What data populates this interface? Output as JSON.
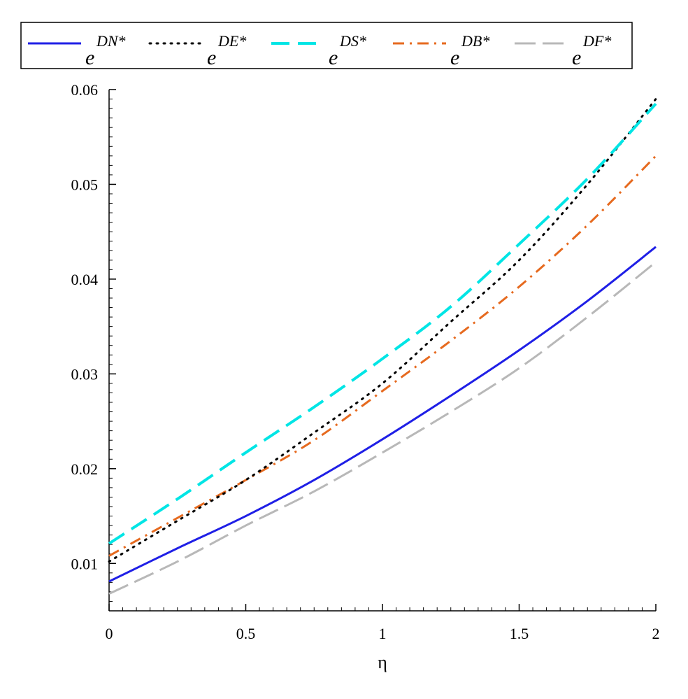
{
  "chart_data": {
    "type": "line",
    "title": "",
    "xlabel": "η",
    "ylabel": "",
    "xlim": [
      0,
      2
    ],
    "ylim": [
      0.005,
      0.06
    ],
    "x_ticks": [
      0,
      0.5,
      1,
      1.5,
      2
    ],
    "x_tick_labels": [
      "0",
      "0.5",
      "1",
      "1.5",
      "2"
    ],
    "y_ticks": [
      0.01,
      0.02,
      0.03,
      0.04,
      0.05,
      0.06
    ],
    "y_tick_labels": [
      "0.01",
      "0.02",
      "0.03",
      "0.04",
      "0.05",
      "0.06"
    ],
    "grid": false,
    "legend_position": "top",
    "x": [
      0,
      0.25,
      0.5,
      0.75,
      1.0,
      1.25,
      1.5,
      1.75,
      2.0
    ],
    "series": [
      {
        "name": "DN*",
        "legend_base": "e",
        "legend_sup": "DN*",
        "color": "#1f1fe6",
        "dash": "solid",
        "values": [
          0.0081,
          0.0116,
          0.015,
          0.0188,
          0.0231,
          0.0277,
          0.0325,
          0.0377,
          0.0434
        ]
      },
      {
        "name": "DE*",
        "legend_base": "e",
        "legend_sup": "DE*",
        "color": "#000000",
        "dash": "dot",
        "values": [
          0.0102,
          0.0145,
          0.0188,
          0.0238,
          0.029,
          0.0355,
          0.042,
          0.05,
          0.059
        ]
      },
      {
        "name": "DS*",
        "legend_base": "e",
        "legend_sup": "DS*",
        "color": "#00e5e5",
        "dash": "dash",
        "values": [
          0.0121,
          0.0168,
          0.0217,
          0.0265,
          0.0316,
          0.0371,
          0.0437,
          0.0506,
          0.0585
        ]
      },
      {
        "name": "DB*",
        "legend_base": "e",
        "legend_sup": "DB*",
        "color": "#e66a1f",
        "dash": "dashdot",
        "values": [
          0.0108,
          0.0148,
          0.0188,
          0.023,
          0.0282,
          0.0335,
          0.0392,
          0.0457,
          0.053
        ]
      },
      {
        "name": "DF*",
        "legend_base": "e",
        "legend_sup": "DF*",
        "color": "#b8b8b8",
        "dash": "longdash",
        "values": [
          0.0068,
          0.0102,
          0.014,
          0.0176,
          0.0217,
          0.026,
          0.0306,
          0.036,
          0.0418
        ]
      }
    ]
  }
}
